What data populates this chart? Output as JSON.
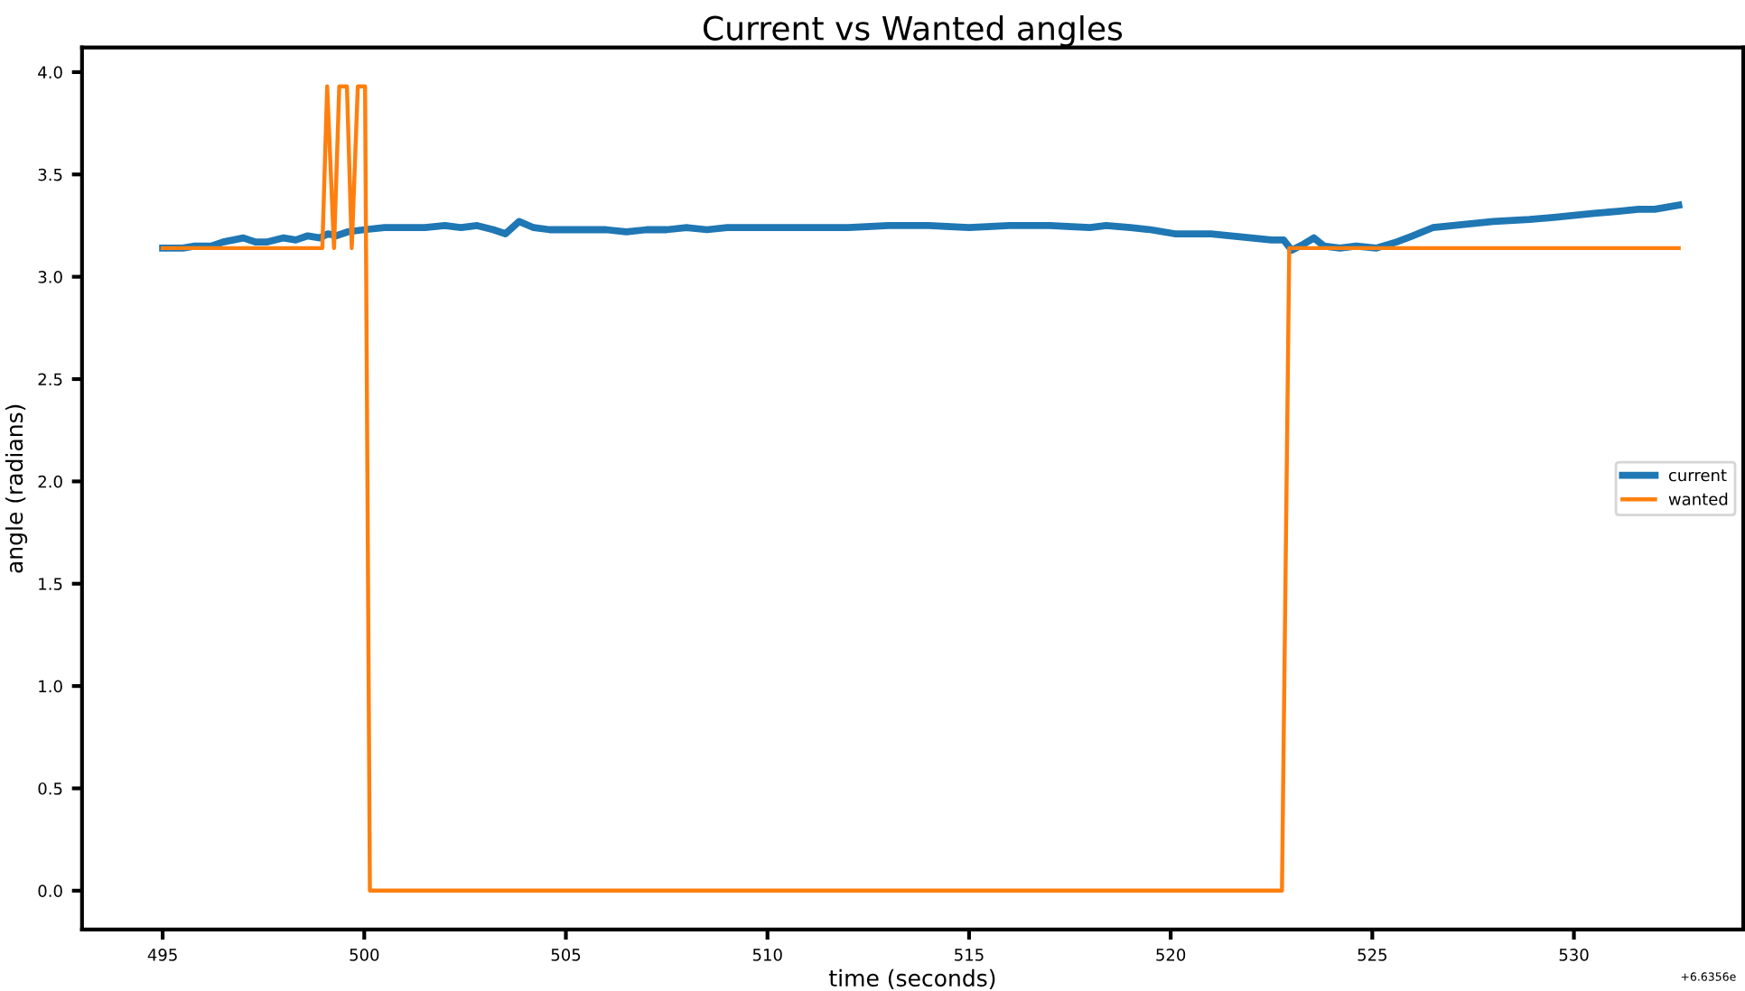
{
  "chart_data": {
    "type": "line",
    "title": "Current vs Wanted angles",
    "xlabel": "time (seconds)",
    "ylabel": "angle (radians)",
    "series": [
      {
        "name": "current",
        "color": "#1f77b4",
        "x": [
          495.0,
          495.5,
          495.8,
          496.2,
          496.5,
          497.0,
          497.3,
          497.6,
          498.0,
          498.3,
          498.6,
          498.9,
          499.1,
          499.3,
          499.6,
          500.0,
          500.5,
          501.0,
          501.5,
          502.0,
          502.4,
          502.8,
          503.2,
          503.5,
          503.84,
          504.2,
          504.6,
          505.0,
          506.0,
          506.5,
          507.0,
          507.5,
          508.0,
          508.5,
          509.0,
          510.0,
          511.0,
          512.0,
          513.0,
          514.0,
          515.0,
          516.0,
          517.0,
          518.0,
          518.4,
          519.0,
          519.5,
          520.1,
          520.5,
          521.0,
          521.5,
          522.0,
          522.5,
          522.8,
          523.0,
          523.3,
          523.55,
          523.8,
          524.2,
          524.6,
          525.1,
          525.6,
          526.0,
          526.5,
          527.0,
          527.5,
          528.0,
          528.9,
          529.5,
          530.0,
          530.5,
          531.1,
          531.6,
          532.0,
          532.6
        ],
        "values": [
          3.14,
          3.14,
          3.15,
          3.15,
          3.17,
          3.19,
          3.17,
          3.17,
          3.19,
          3.18,
          3.2,
          3.19,
          3.21,
          3.2,
          3.22,
          3.23,
          3.24,
          3.24,
          3.24,
          3.25,
          3.24,
          3.25,
          3.23,
          3.21,
          3.27,
          3.24,
          3.23,
          3.23,
          3.23,
          3.22,
          3.23,
          3.23,
          3.24,
          3.23,
          3.24,
          3.24,
          3.24,
          3.24,
          3.25,
          3.25,
          3.24,
          3.25,
          3.25,
          3.24,
          3.25,
          3.24,
          3.23,
          3.21,
          3.21,
          3.21,
          3.2,
          3.19,
          3.18,
          3.18,
          3.13,
          3.16,
          3.19,
          3.15,
          3.14,
          3.15,
          3.14,
          3.17,
          3.2,
          3.24,
          3.25,
          3.26,
          3.27,
          3.28,
          3.29,
          3.3,
          3.31,
          3.32,
          3.33,
          3.33,
          3.35
        ]
      },
      {
        "name": "wanted",
        "color": "#ff7f0e",
        "x": [
          495.0,
          498.96,
          499.08,
          499.25,
          499.38,
          499.57,
          499.69,
          499.84,
          500.02,
          500.14,
          522.76,
          522.94,
          532.6
        ],
        "values": [
          3.14,
          3.14,
          3.93,
          3.14,
          3.93,
          3.93,
          3.14,
          3.93,
          3.93,
          0.0,
          0.0,
          3.14,
          3.14
        ]
      }
    ],
    "xlim": [
      493.0,
      534.2
    ],
    "ylim": [
      -0.19,
      4.12
    ],
    "xticks": [
      495,
      500,
      505,
      510,
      515,
      520,
      525,
      530
    ],
    "yticks": [
      {
        "value": 0,
        "label": "0.0"
      },
      {
        "value": 0.5,
        "label": "0.5"
      },
      {
        "value": 1,
        "label": "1.0"
      },
      {
        "value": 1.5,
        "label": "1.5"
      },
      {
        "value": 2,
        "label": "2.0"
      },
      {
        "value": 2.5,
        "label": "2.5"
      },
      {
        "value": 3,
        "label": "3.0"
      },
      {
        "value": 3.5,
        "label": "3.5"
      },
      {
        "value": 4,
        "label": "4.0"
      }
    ],
    "grid": false,
    "legend": "right",
    "marker": "none",
    "line_style": "solid",
    "annotations": [
      "+6.6356e"
    ]
  }
}
